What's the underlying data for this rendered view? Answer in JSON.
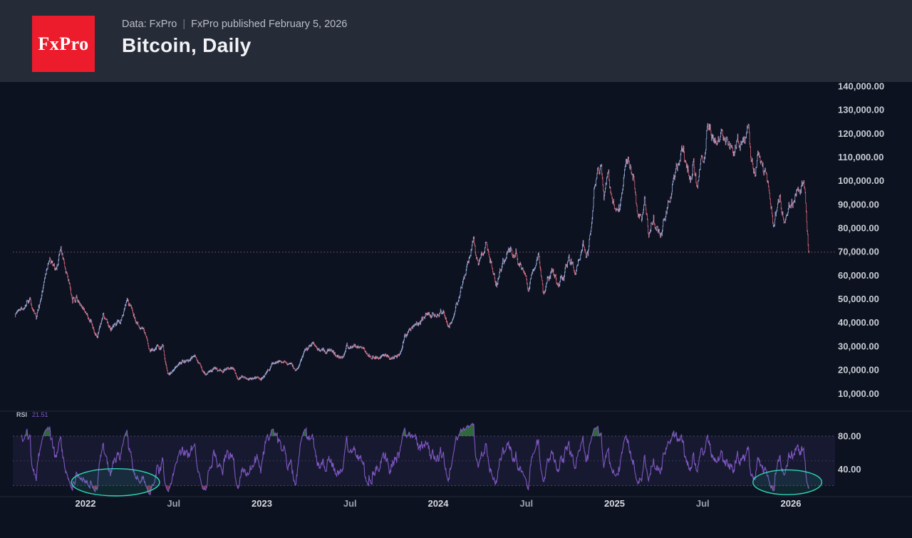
{
  "header": {
    "logo_text": "FxPro",
    "data_source": "Data: FxPro",
    "separator": "|",
    "published": "FxPro published February 5, 2026",
    "title": "Bitcoin, Daily"
  },
  "colors": {
    "page_bg": "#0c1220",
    "header_bg": "#262b38",
    "logo_red": "#ec1c2d",
    "candle_up": "#a4b8ea",
    "candle_down": "#df6a7e",
    "rsi_line": "#7e57c2",
    "rsi_band_fill": "rgba(126,87,194,0.10)",
    "rsi_dash": "#4b4763",
    "overbought_fill": "#4caf50",
    "oversold_fill": "#f7525f",
    "ellipse_teal": "#2fd5b5",
    "last_price_line": "rgba(240,150,160,0.55)",
    "axis_text": "#c9cdd5",
    "axis_text_dim": "#99a1ae",
    "pane_separator": "#232a39"
  },
  "chart_data": {
    "type": "candlestick",
    "title": "Bitcoin, Daily",
    "symbol": "Bitcoin",
    "timeframe": "Daily",
    "grid": false,
    "x_range": [
      2021.6,
      2026.12
    ],
    "x_ticks": [
      {
        "label": "2022",
        "t": 2022.0,
        "year": true
      },
      {
        "label": "Jul",
        "t": 2022.5,
        "year": false
      },
      {
        "label": "2023",
        "t": 2023.0,
        "year": true
      },
      {
        "label": "Jul",
        "t": 2023.5,
        "year": false
      },
      {
        "label": "2024",
        "t": 2024.0,
        "year": true
      },
      {
        "label": "Jul",
        "t": 2024.5,
        "year": false
      },
      {
        "label": "2025",
        "t": 2025.0,
        "year": true
      },
      {
        "label": "Jul",
        "t": 2025.5,
        "year": false
      },
      {
        "label": "2026",
        "t": 2026.0,
        "year": true
      }
    ],
    "price_axis": {
      "ticks": [
        {
          "v": 140000,
          "label": "140,000.00"
        },
        {
          "v": 130000,
          "label": "130,000.00"
        },
        {
          "v": 120000,
          "label": "120,000.00"
        },
        {
          "v": 110000,
          "label": "110,000.00"
        },
        {
          "v": 100000,
          "label": "100,000.00"
        },
        {
          "v": 90000,
          "label": "90,000.00"
        },
        {
          "v": 80000,
          "label": "80,000.00"
        },
        {
          "v": 70000,
          "label": "70,000.00"
        },
        {
          "v": 60000,
          "label": "60,000.00"
        },
        {
          "v": 50000,
          "label": "50,000.00"
        },
        {
          "v": 40000,
          "label": "40,000.00"
        },
        {
          "v": 30000,
          "label": "30,000.00"
        },
        {
          "v": 20000,
          "label": "20,000.00"
        },
        {
          "v": 10000,
          "label": "10,000.00"
        }
      ]
    },
    "last_price_line": 69800,
    "series_keypoints": [
      [
        2021.6,
        43500
      ],
      [
        2021.64,
        47200
      ],
      [
        2021.685,
        52600
      ],
      [
        2021.72,
        40900
      ],
      [
        2021.76,
        54800
      ],
      [
        2021.8,
        66900
      ],
      [
        2021.83,
        59300
      ],
      [
        2021.86,
        68900
      ],
      [
        2021.9,
        56500
      ],
      [
        2021.925,
        48600
      ],
      [
        2021.96,
        50900
      ],
      [
        2022.0,
        46300
      ],
      [
        2022.03,
        41500
      ],
      [
        2022.065,
        33900
      ],
      [
        2022.1,
        44400
      ],
      [
        2022.14,
        37100
      ],
      [
        2022.18,
        39300
      ],
      [
        2022.235,
        47900
      ],
      [
        2022.3,
        39500
      ],
      [
        2022.33,
        35800
      ],
      [
        2022.36,
        28900
      ],
      [
        2022.4,
        30300
      ],
      [
        2022.44,
        29300
      ],
      [
        2022.465,
        18300
      ],
      [
        2022.5,
        19300
      ],
      [
        2022.55,
        23200
      ],
      [
        2022.62,
        24800
      ],
      [
        2022.68,
        18900
      ],
      [
        2022.73,
        20100
      ],
      [
        2022.78,
        19200
      ],
      [
        2022.835,
        20900
      ],
      [
        2022.862,
        15900
      ],
      [
        2022.91,
        16800
      ],
      [
        2022.96,
        17300
      ],
      [
        2023.0,
        16600
      ],
      [
        2023.06,
        22900
      ],
      [
        2023.13,
        24800
      ],
      [
        2023.16,
        21900
      ],
      [
        2023.19,
        20200
      ],
      [
        2023.25,
        28400
      ],
      [
        2023.285,
        30400
      ],
      [
        2023.32,
        27600
      ],
      [
        2023.38,
        29100
      ],
      [
        2023.42,
        26300
      ],
      [
        2023.45,
        25100
      ],
      [
        2023.48,
        30700
      ],
      [
        2023.54,
        31200
      ],
      [
        2023.58,
        29300
      ],
      [
        2023.62,
        26000
      ],
      [
        2023.68,
        26100
      ],
      [
        2023.73,
        25500
      ],
      [
        2023.78,
        27200
      ],
      [
        2023.81,
        34100
      ],
      [
        2023.87,
        37400
      ],
      [
        2023.93,
        44100
      ],
      [
        2023.96,
        41300
      ],
      [
        2024.03,
        46700
      ],
      [
        2024.045,
        42800
      ],
      [
        2024.06,
        39400
      ],
      [
        2024.12,
        51800
      ],
      [
        2024.16,
        62300
      ],
      [
        2024.2,
        73300
      ],
      [
        2024.23,
        63100
      ],
      [
        2024.27,
        70900
      ],
      [
        2024.31,
        62400
      ],
      [
        2024.33,
        58200
      ],
      [
        2024.39,
        71200
      ],
      [
        2024.44,
        71300
      ],
      [
        2024.48,
        60100
      ],
      [
        2024.51,
        54700
      ],
      [
        2024.57,
        69400
      ],
      [
        2024.595,
        50500
      ],
      [
        2024.64,
        63900
      ],
      [
        2024.68,
        53800
      ],
      [
        2024.74,
        65500
      ],
      [
        2024.78,
        59800
      ],
      [
        2024.82,
        71800
      ],
      [
        2024.85,
        68300
      ],
      [
        2024.89,
        98600
      ],
      [
        2024.925,
        103400
      ],
      [
        2024.94,
        95700
      ],
      [
        2024.96,
        106900
      ],
      [
        2024.995,
        92900
      ],
      [
        2025.03,
        91200
      ],
      [
        2025.055,
        107900
      ],
      [
        2025.08,
        104100
      ],
      [
        2025.12,
        96300
      ],
      [
        2025.155,
        79200
      ],
      [
        2025.17,
        93800
      ],
      [
        2025.195,
        78600
      ],
      [
        2025.22,
        87400
      ],
      [
        2025.26,
        75600
      ],
      [
        2025.3,
        93200
      ],
      [
        2025.35,
        103600
      ],
      [
        2025.39,
        110900
      ],
      [
        2025.43,
        101400
      ],
      [
        2025.445,
        109900
      ],
      [
        2025.47,
        98900
      ],
      [
        2025.53,
        122400
      ],
      [
        2025.58,
        112900
      ],
      [
        2025.62,
        123900
      ],
      [
        2025.66,
        108900
      ],
      [
        2025.71,
        117300
      ],
      [
        2025.76,
        125800
      ],
      [
        2025.785,
        105300
      ],
      [
        2025.82,
        112300
      ],
      [
        2025.845,
        100200
      ],
      [
        2025.86,
        103100
      ],
      [
        2025.9,
        80900
      ],
      [
        2025.93,
        92400
      ],
      [
        2025.96,
        86400
      ],
      [
        2026.0,
        88700
      ],
      [
        2026.03,
        97300
      ],
      [
        2026.05,
        91600
      ],
      [
        2026.07,
        96600
      ],
      [
        2026.082,
        92300
      ],
      [
        2026.095,
        79500
      ],
      [
        2026.103,
        69800
      ]
    ],
    "indicator": {
      "name": "RSI",
      "period": 14,
      "value": "21.51",
      "overbought": 80,
      "mid": 50,
      "oversold": 20,
      "axis_ticks": [
        {
          "v": 80,
          "label": "80.00"
        },
        {
          "v": 40,
          "label": "40.00"
        }
      ]
    },
    "annotations": {
      "ellipses": [
        {
          "t_center": 2022.17,
          "t_radius": 0.25,
          "rsi_center": 24,
          "rsi_radius": 16.5
        },
        {
          "t_center": 2025.98,
          "t_radius": 0.195,
          "rsi_center": 24,
          "rsi_radius": 15
        }
      ]
    }
  }
}
